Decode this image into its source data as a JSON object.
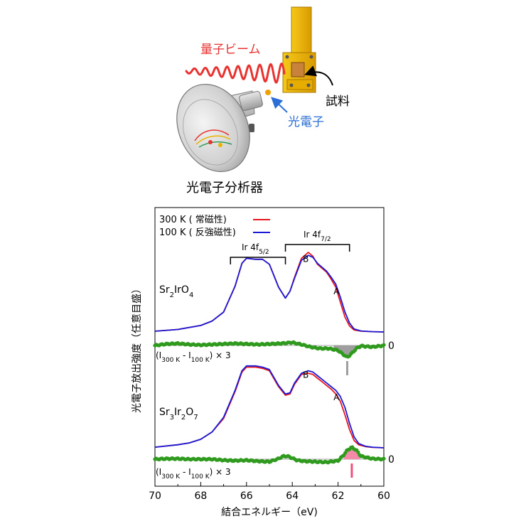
{
  "illustration": {
    "beam_label": "量子ビーム",
    "sample_label": "試料",
    "photoelectron_label": "光電子",
    "analyzer_label": "光電子分析器",
    "colors": {
      "beam": "#e8322f",
      "photoelectron": "#2b6fd6",
      "holder": "#e8b400"
    }
  },
  "chart_data": {
    "type": "line",
    "xlabel": "結合エネルギー（eV)",
    "ylabel": "光電子放出強度（任意目盛）",
    "xlim": [
      70,
      60
    ],
    "x_reversed": true,
    "xticks": [
      "70",
      "68",
      "66",
      "64",
      "62",
      "60"
    ],
    "legend": {
      "placement": "top-left",
      "entries": [
        {
          "label": "300 K ( 常磁性)",
          "color": "#e8141e"
        },
        {
          "label": "100 K ( 反強磁性)",
          "color": "#1a1ad6"
        }
      ]
    },
    "brackets": [
      {
        "label": "Ir 4f",
        "sub": "5/2",
        "from": 66.7,
        "to": 64.3
      },
      {
        "label": "Ir 4f",
        "sub": "7/2",
        "from": 64.3,
        "to": 61.5
      }
    ],
    "panels": [
      {
        "name": "Sr2IrO4",
        "compound": {
          "a": "Sr",
          "a_n": "2",
          "b": "Ir",
          "b_n": "",
          "c": "O",
          "c_n": "4"
        },
        "x": [
          70,
          69,
          68,
          67.5,
          67,
          66.5,
          66.2,
          66,
          65.6,
          65.3,
          65,
          64.6,
          64.3,
          64.1,
          63.9,
          63.6,
          63.3,
          63.1,
          62.9,
          62.7,
          62.5,
          62.3,
          62.1,
          61.9,
          61.7,
          61.5,
          61.3,
          61,
          60.5,
          60
        ],
        "series": [
          {
            "name": "300 K",
            "color": "#e8141e",
            "values": [
              0.8,
              2.5,
              6.5,
              11,
              20,
              46,
              69,
              74,
              73,
              73,
              68,
              45,
              34,
              41,
              55,
              74,
              80,
              76,
              68,
              64,
              60,
              53,
              45,
              30,
              15,
              6,
              2,
              0.8,
              0.3,
              0
            ]
          },
          {
            "name": "100 K",
            "color": "#1a1ad6",
            "values": [
              0.7,
              2.5,
              6.5,
              11,
              20,
              46,
              69,
              74,
              73,
              73,
              68,
              45,
              34,
              41,
              54,
              72,
              77,
              75,
              69,
              65,
              61,
              55,
              48,
              35,
              20,
              9,
              3,
              1,
              0.3,
              0
            ]
          }
        ],
        "difference": {
          "label": "(I300 K - I100 K) × 3",
          "color": "#2f9a1e",
          "x": [
            70,
            69.5,
            69,
            68.5,
            68,
            67.5,
            67,
            66.5,
            66,
            65.5,
            65,
            64.5,
            64,
            63.6,
            63.2,
            62.8,
            62.4,
            62,
            61.8,
            61.6,
            61.4,
            61.2,
            61,
            60.5,
            60
          ],
          "values": [
            0,
            0.3,
            0.4,
            0.2,
            0.1,
            0.2,
            0.3,
            0.4,
            0.3,
            0.2,
            0.3,
            0.4,
            0.6,
            0.2,
            -0.3,
            -0.6,
            -0.6,
            -1.0,
            -1.7,
            -2.4,
            -1.6,
            -0.6,
            -0.1,
            -0.3,
            0
          ],
          "zero_label": "0",
          "shade": {
            "from": 62.2,
            "to": 61.0,
            "color": "#9e9e9e"
          },
          "marker": {
            "x": 61.6,
            "color": "#9e9e9e"
          }
        },
        "peak_labels": [
          {
            "text": "B",
            "x": 63.1
          },
          {
            "text": "A",
            "x": 62.1
          }
        ]
      },
      {
        "name": "Sr3Ir2O7",
        "compound": {
          "a": "Sr",
          "a_n": "3",
          "b": "Ir",
          "b_n": "2",
          "c": "O",
          "c_n": "7"
        },
        "x": [
          70,
          69,
          68.5,
          68,
          67.5,
          67,
          66.5,
          66.2,
          66,
          65.6,
          65.3,
          65,
          64.6,
          64.3,
          64.1,
          63.9,
          63.6,
          63.3,
          63.1,
          62.9,
          62.7,
          62.5,
          62.3,
          62.1,
          61.9,
          61.7,
          61.5,
          61.3,
          61.1,
          60.8,
          60.5,
          60
        ],
        "series": [
          {
            "name": "300 K",
            "color": "#e8141e",
            "values": [
              0.5,
              2.5,
              4,
              7,
              13,
              24,
              46,
              62,
              66,
              66,
              65,
              63,
              50,
              43,
              44,
              52,
              60,
              61,
              60,
              57,
              54,
              51,
              48,
              44,
              38,
              27,
              15,
              6,
              2.5,
              1,
              0.4,
              0
            ]
          },
          {
            "name": "100 K",
            "color": "#1a1ad6",
            "values": [
              0.5,
              2.5,
              4,
              7,
              13,
              25,
              47,
              63,
              67,
              67,
              66,
              64,
              51,
              44,
              45,
              53,
              61,
              63,
              62,
              59,
              56,
              53,
              50,
              47,
              42,
              33,
              20,
              9,
              3.5,
              1.3,
              0.5,
              0
            ]
          }
        ],
        "difference": {
          "label": "(I300 K - I100 K) × 3",
          "color": "#2f9a1e",
          "x": [
            70,
            69.5,
            69,
            68.5,
            68,
            67.5,
            67,
            66.5,
            66,
            65.5,
            65,
            64.6,
            64.4,
            64.2,
            64,
            63.8,
            63.5,
            63,
            62.5,
            62,
            61.8,
            61.6,
            61.4,
            61.2,
            61,
            60.5,
            60
          ],
          "values": [
            0,
            0.1,
            0.1,
            0,
            0,
            0,
            -0.2,
            -0.3,
            -0.2,
            -0.4,
            -0.5,
            0.1,
            0.6,
            0.6,
            0.2,
            -0.2,
            -0.4,
            -0.5,
            -0.6,
            -0.3,
            0.6,
            1.8,
            2.4,
            1.8,
            0.6,
            0.1,
            0
          ],
          "zero_label": "0",
          "shade": {
            "from": 61.75,
            "to": 61.05,
            "color": "#f48aa8"
          },
          "marker": {
            "x": 61.4,
            "color": "#f0507e"
          }
        },
        "peak_labels": [
          {
            "text": "B",
            "x": 63.1
          },
          {
            "text": "A",
            "x": 62.1
          }
        ]
      }
    ]
  }
}
